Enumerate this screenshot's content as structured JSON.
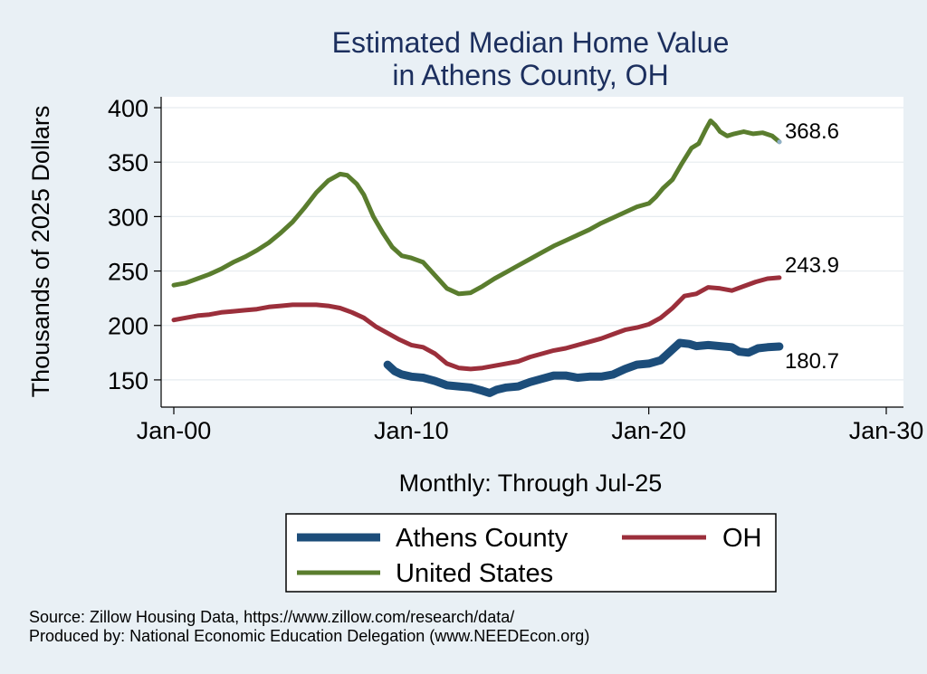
{
  "chart_data": {
    "type": "line",
    "title": [
      "Estimated Median Home Value",
      "in Athens County, OH"
    ],
    "ylabel": "Thousands of 2025 Dollars",
    "xlabel": "Monthly: Through Jul-25",
    "ylim": [
      125,
      410
    ],
    "yticks": [
      150,
      200,
      250,
      300,
      350,
      400
    ],
    "xlim": [
      2000.0,
      2030.0
    ],
    "xticks": [
      {
        "value": 2000.0,
        "label": "Jan-00"
      },
      {
        "value": 2010.0,
        "label": "Jan-10"
      },
      {
        "value": 2020.0,
        "label": "Jan-20"
      },
      {
        "value": 2030.0,
        "label": "Jan-30"
      }
    ],
    "series": [
      {
        "name": "United States",
        "color": "#5a7d2e",
        "line_weight": "medium",
        "end_label": "368.6",
        "points": [
          [
            2000.0,
            237
          ],
          [
            2000.5,
            239
          ],
          [
            2001.0,
            243
          ],
          [
            2001.5,
            247
          ],
          [
            2002.0,
            252
          ],
          [
            2002.5,
            258
          ],
          [
            2003.0,
            263
          ],
          [
            2003.5,
            269
          ],
          [
            2004.0,
            276
          ],
          [
            2004.5,
            285
          ],
          [
            2005.0,
            295
          ],
          [
            2005.5,
            308
          ],
          [
            2006.0,
            322
          ],
          [
            2006.5,
            333
          ],
          [
            2007.0,
            339
          ],
          [
            2007.3,
            338
          ],
          [
            2007.7,
            330
          ],
          [
            2008.0,
            320
          ],
          [
            2008.4,
            300
          ],
          [
            2008.8,
            285
          ],
          [
            2009.2,
            272
          ],
          [
            2009.6,
            264
          ],
          [
            2010.0,
            262
          ],
          [
            2010.5,
            258
          ],
          [
            2011.0,
            246
          ],
          [
            2011.5,
            234
          ],
          [
            2012.0,
            229
          ],
          [
            2012.5,
            230
          ],
          [
            2013.0,
            236
          ],
          [
            2013.5,
            243
          ],
          [
            2014.0,
            249
          ],
          [
            2014.5,
            255
          ],
          [
            2015.0,
            261
          ],
          [
            2015.5,
            267
          ],
          [
            2016.0,
            273
          ],
          [
            2016.5,
            278
          ],
          [
            2017.0,
            283
          ],
          [
            2017.5,
            288
          ],
          [
            2018.0,
            294
          ],
          [
            2018.5,
            299
          ],
          [
            2019.0,
            304
          ],
          [
            2019.5,
            309
          ],
          [
            2020.0,
            312
          ],
          [
            2020.3,
            318
          ],
          [
            2020.6,
            326
          ],
          [
            2021.0,
            334
          ],
          [
            2021.4,
            349
          ],
          [
            2021.8,
            363
          ],
          [
            2022.1,
            367
          ],
          [
            2022.4,
            380
          ],
          [
            2022.6,
            388
          ],
          [
            2022.8,
            384
          ],
          [
            2023.0,
            378
          ],
          [
            2023.3,
            374
          ],
          [
            2023.6,
            376
          ],
          [
            2024.0,
            378
          ],
          [
            2024.4,
            376
          ],
          [
            2024.8,
            377
          ],
          [
            2025.2,
            374
          ],
          [
            2025.5,
            368.6
          ]
        ]
      },
      {
        "name": "OH",
        "color": "#9b2f3b",
        "line_weight": "medium",
        "end_label": "243.9",
        "points": [
          [
            2000.0,
            205
          ],
          [
            2000.5,
            207
          ],
          [
            2001.0,
            209
          ],
          [
            2001.5,
            210
          ],
          [
            2002.0,
            212
          ],
          [
            2002.5,
            213
          ],
          [
            2003.0,
            214
          ],
          [
            2003.5,
            215
          ],
          [
            2004.0,
            217
          ],
          [
            2004.5,
            218
          ],
          [
            2005.0,
            219
          ],
          [
            2005.5,
            219
          ],
          [
            2006.0,
            219
          ],
          [
            2006.5,
            218
          ],
          [
            2007.0,
            216
          ],
          [
            2007.5,
            212
          ],
          [
            2008.0,
            207
          ],
          [
            2008.5,
            199
          ],
          [
            2009.0,
            193
          ],
          [
            2009.5,
            187
          ],
          [
            2010.0,
            182
          ],
          [
            2010.5,
            180
          ],
          [
            2011.0,
            174
          ],
          [
            2011.5,
            165
          ],
          [
            2012.0,
            161
          ],
          [
            2012.5,
            160
          ],
          [
            2013.0,
            161
          ],
          [
            2013.5,
            163
          ],
          [
            2014.0,
            165
          ],
          [
            2014.5,
            167
          ],
          [
            2015.0,
            171
          ],
          [
            2015.5,
            174
          ],
          [
            2016.0,
            177
          ],
          [
            2016.5,
            179
          ],
          [
            2017.0,
            182
          ],
          [
            2017.5,
            185
          ],
          [
            2018.0,
            188
          ],
          [
            2018.5,
            192
          ],
          [
            2019.0,
            196
          ],
          [
            2019.5,
            198
          ],
          [
            2020.0,
            201
          ],
          [
            2020.5,
            207
          ],
          [
            2021.0,
            216
          ],
          [
            2021.5,
            227
          ],
          [
            2022.0,
            229
          ],
          [
            2022.5,
            235
          ],
          [
            2023.0,
            234
          ],
          [
            2023.5,
            232
          ],
          [
            2024.0,
            236
          ],
          [
            2024.5,
            240
          ],
          [
            2025.0,
            243
          ],
          [
            2025.5,
            243.9
          ]
        ]
      },
      {
        "name": "Athens County",
        "color": "#1c4d7a",
        "line_weight": "thick",
        "end_label": "180.7",
        "points": [
          [
            2009.0,
            164
          ],
          [
            2009.3,
            158
          ],
          [
            2009.6,
            155
          ],
          [
            2010.0,
            153
          ],
          [
            2010.5,
            152
          ],
          [
            2011.0,
            149
          ],
          [
            2011.5,
            145
          ],
          [
            2012.0,
            144
          ],
          [
            2012.5,
            143
          ],
          [
            2013.0,
            140
          ],
          [
            2013.3,
            138
          ],
          [
            2013.6,
            141
          ],
          [
            2014.0,
            143
          ],
          [
            2014.5,
            144
          ],
          [
            2015.0,
            148
          ],
          [
            2015.5,
            151
          ],
          [
            2016.0,
            154
          ],
          [
            2016.5,
            154
          ],
          [
            2017.0,
            152
          ],
          [
            2017.5,
            153
          ],
          [
            2018.0,
            153
          ],
          [
            2018.5,
            155
          ],
          [
            2019.0,
            160
          ],
          [
            2019.5,
            164
          ],
          [
            2020.0,
            165
          ],
          [
            2020.5,
            168
          ],
          [
            2021.0,
            178
          ],
          [
            2021.3,
            184
          ],
          [
            2021.7,
            183
          ],
          [
            2022.0,
            181
          ],
          [
            2022.5,
            182
          ],
          [
            2023.0,
            181
          ],
          [
            2023.5,
            180
          ],
          [
            2023.8,
            176
          ],
          [
            2024.2,
            175
          ],
          [
            2024.6,
            179
          ],
          [
            2025.0,
            180
          ],
          [
            2025.5,
            180.7
          ]
        ]
      }
    ],
    "legend": {
      "placement": "bottom",
      "order": [
        "Athens County",
        "OH",
        "United States"
      ]
    }
  },
  "footer": {
    "source": "Source: Zillow Housing Data, https://www.zillow.com/research/data/",
    "producer": "Produced by: National Economic Education Delegation (www.NEEDEcon.org)"
  }
}
